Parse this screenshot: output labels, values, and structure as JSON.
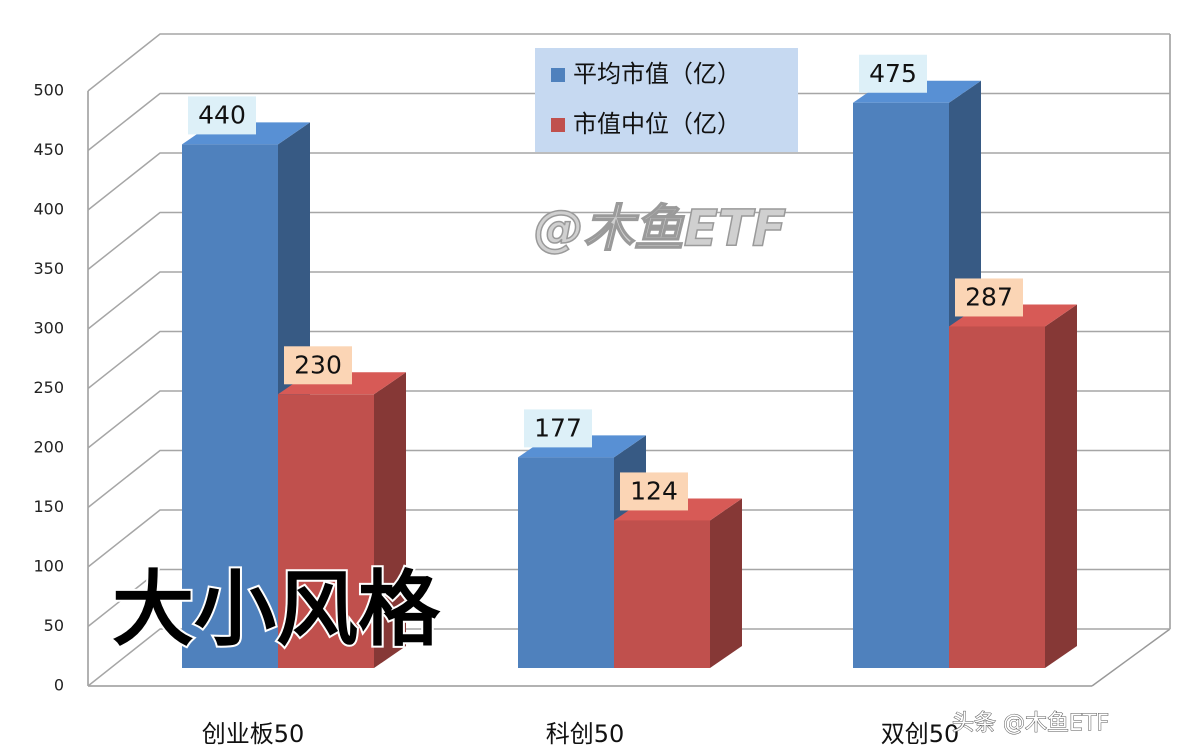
{
  "chart_data": {
    "type": "bar",
    "categories": [
      "创业板50",
      "科创50",
      "双创50"
    ],
    "series": [
      {
        "name": "平均市值（亿）",
        "color": "#4f81bd",
        "values": [
          440,
          177,
          475
        ]
      },
      {
        "name": "市值中位（亿）",
        "color": "#c0504d",
        "values": [
          230,
          124,
          287
        ]
      }
    ],
    "ylim": [
      0,
      500
    ],
    "yticks": [
      0,
      50,
      100,
      150,
      200,
      250,
      300,
      350,
      400,
      450,
      500
    ],
    "grid": true,
    "legend": "top",
    "annotations": [
      "@木鱼ETF",
      "大小风格",
      "头条 @木鱼ETF"
    ]
  }
}
